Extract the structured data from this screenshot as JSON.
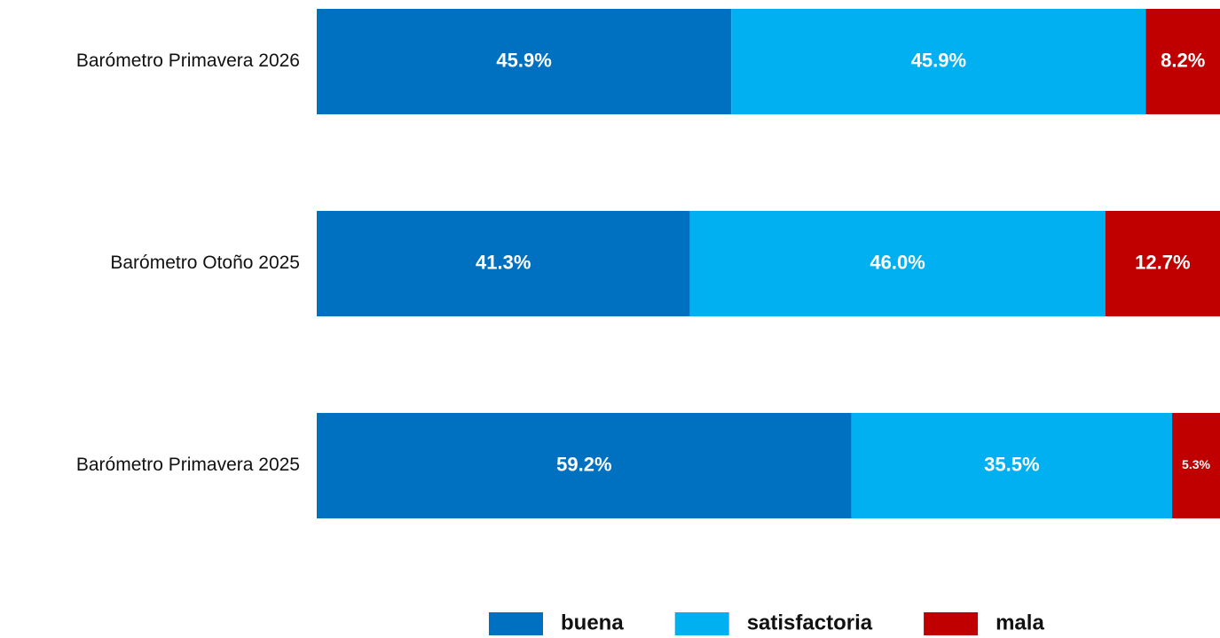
{
  "chart_data": {
    "type": "stacked-bar-horizontal",
    "categories": [
      "Barómetro Primavera 2026",
      "Barómetro Otoño 2025",
      "Barómetro Primavera 2025"
    ],
    "series": [
      {
        "name": "buena",
        "color": "#0070c0",
        "values": [
          45.9,
          41.3,
          59.2
        ],
        "value_labels": [
          "45.9%",
          "41.3%",
          "59.2%"
        ]
      },
      {
        "name": "satisfactoria",
        "color": "#00b0f0",
        "values": [
          45.9,
          46.0,
          35.5
        ],
        "value_labels": [
          "45.9%",
          "46.0%",
          "35.5%"
        ]
      },
      {
        "name": "mala",
        "color": "#c00000",
        "values": [
          8.2,
          12.7,
          5.3
        ],
        "value_labels": [
          "8.2%",
          "12.7%",
          "5.3%"
        ]
      }
    ],
    "legend": "bottom"
  }
}
